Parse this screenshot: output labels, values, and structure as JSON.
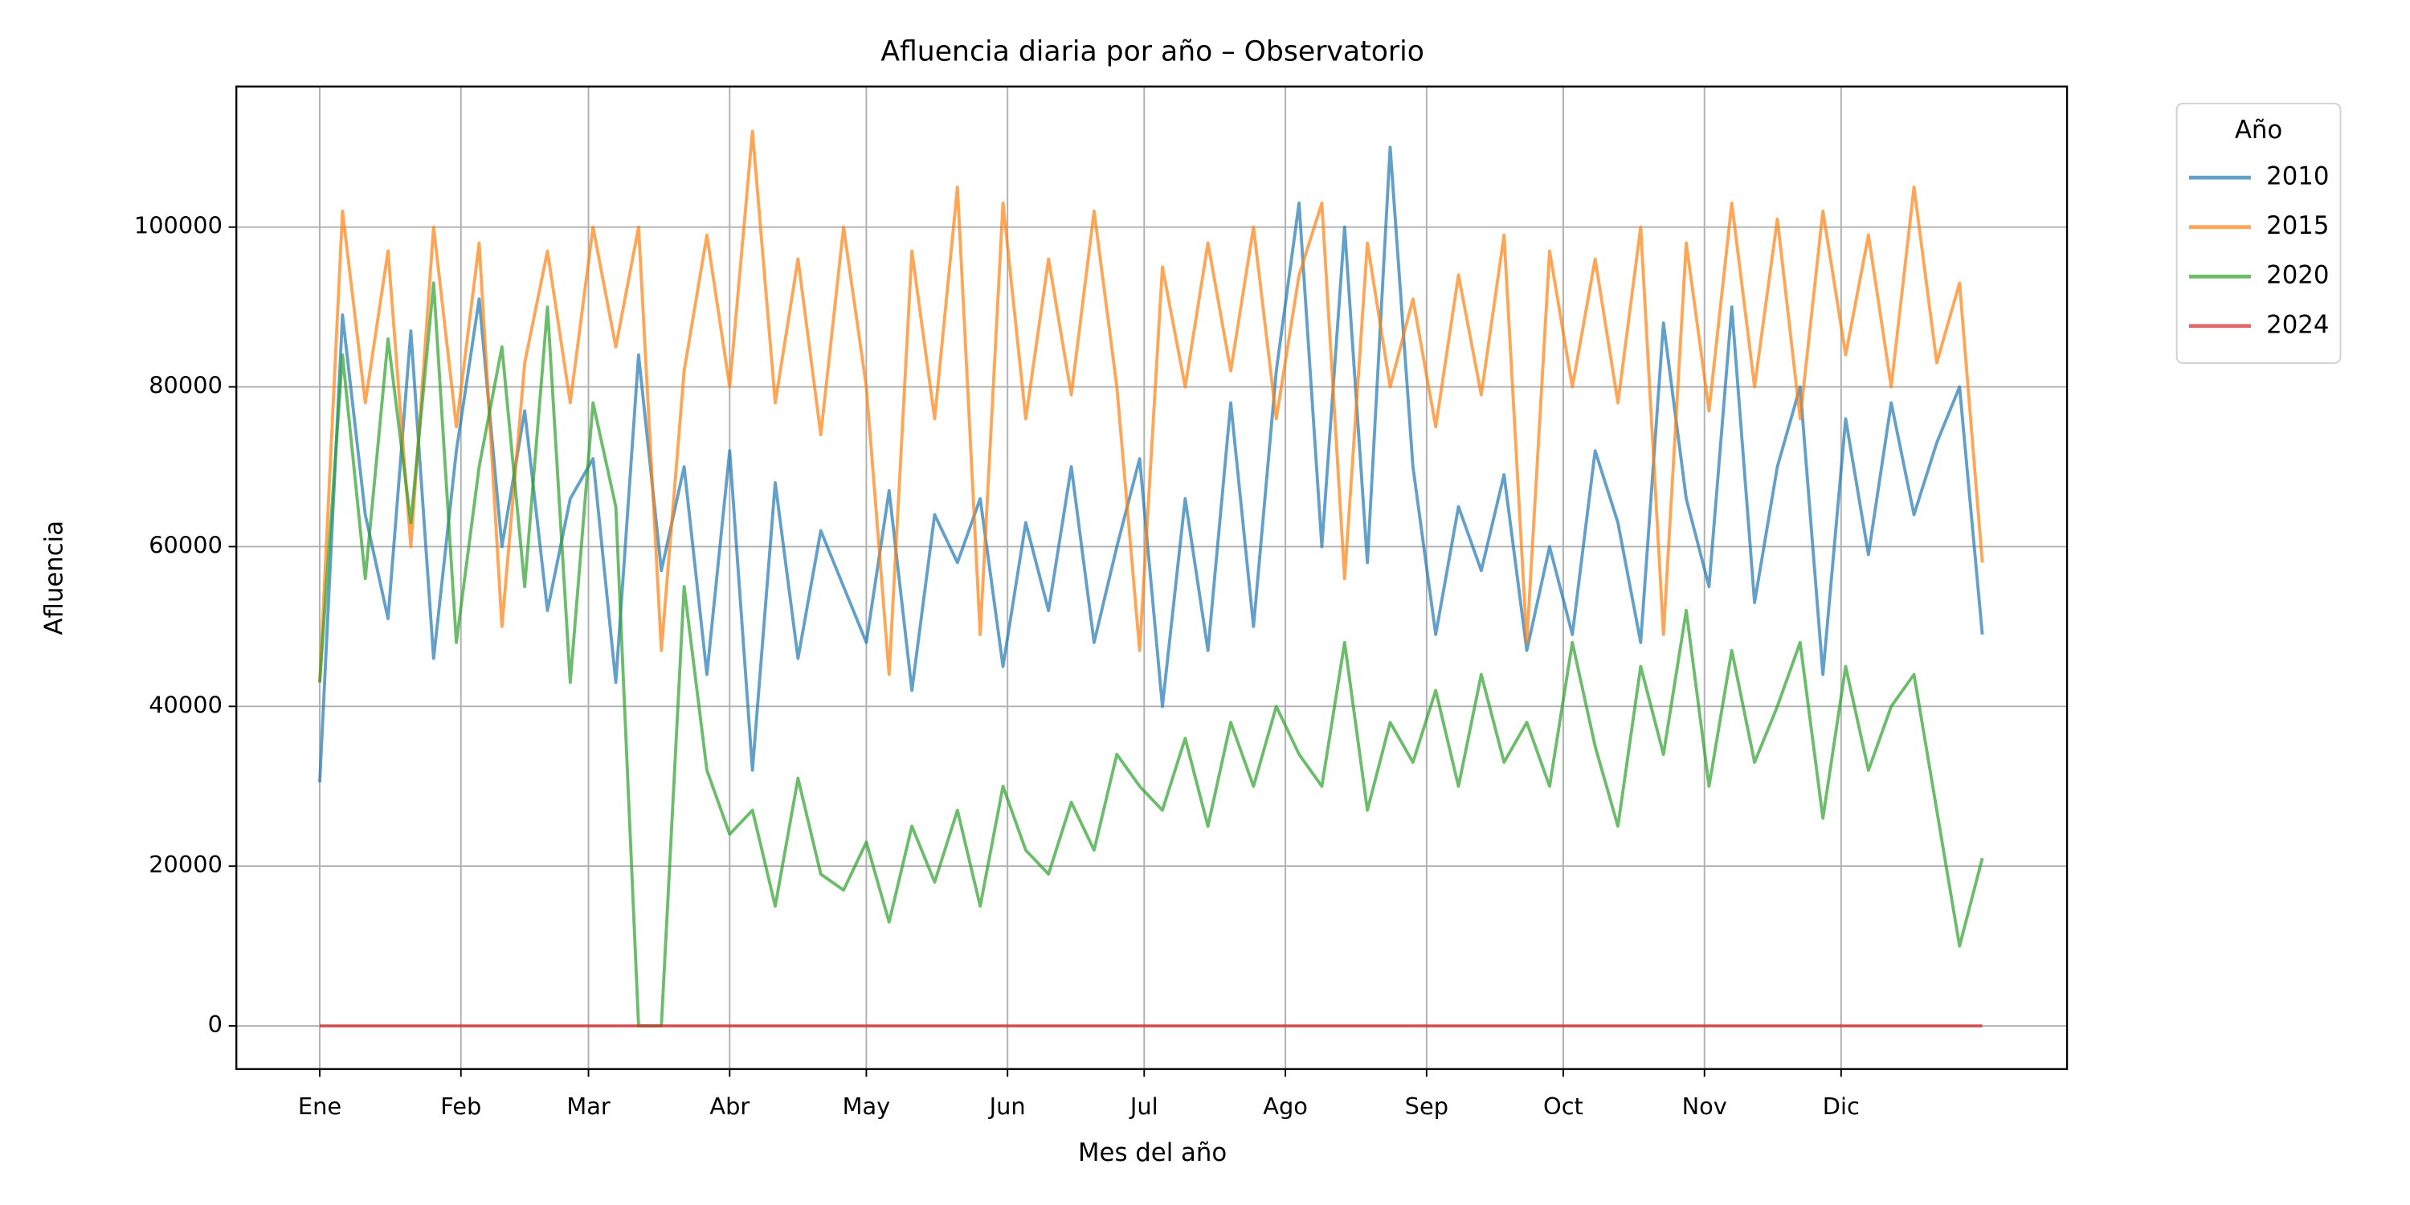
{
  "chart_data": {
    "type": "line",
    "title": "Afluencia diaria por año – Observatorio",
    "xlabel": "Mes del año",
    "ylabel": "Afluencia",
    "legend_title": "Año",
    "legend": "outside upper right",
    "grid": true,
    "x": [
      1,
      6,
      11,
      16,
      21,
      26,
      31,
      36,
      41,
      46,
      51,
      56,
      61,
      66,
      71,
      76,
      81,
      86,
      91,
      96,
      101,
      106,
      111,
      116,
      121,
      126,
      131,
      136,
      141,
      146,
      151,
      156,
      161,
      166,
      171,
      176,
      181,
      186,
      191,
      196,
      201,
      206,
      211,
      216,
      221,
      226,
      231,
      236,
      241,
      246,
      251,
      256,
      261,
      266,
      271,
      276,
      281,
      286,
      291,
      296,
      301,
      306,
      311,
      316,
      321,
      326,
      331,
      336,
      341,
      346,
      351,
      356,
      361,
      366
    ],
    "xlim": [
      -17.3,
      384.6
    ],
    "xticks": [
      {
        "value": 1,
        "label": "Ene"
      },
      {
        "value": 32,
        "label": "Feb"
      },
      {
        "value": 60,
        "label": "Mar"
      },
      {
        "value": 91,
        "label": "Abr"
      },
      {
        "value": 121,
        "label": "May"
      },
      {
        "value": 152,
        "label": "Jun"
      },
      {
        "value": 182,
        "label": "Jul"
      },
      {
        "value": 213,
        "label": "Ago"
      },
      {
        "value": 244,
        "label": "Sep"
      },
      {
        "value": 274,
        "label": "Oct"
      },
      {
        "value": 305,
        "label": "Nov"
      },
      {
        "value": 335,
        "label": "Dic"
      }
    ],
    "ylim": [
      -5400,
      117600
    ],
    "yticks": [
      0,
      20000,
      40000,
      60000,
      80000,
      100000
    ],
    "series": [
      {
        "name": "2010",
        "color": "#1f77b4",
        "values": [
          30500,
          89000,
          64000,
          51000,
          87000,
          46000,
          72000,
          91000,
          60000,
          77000,
          52000,
          66000,
          71000,
          43000,
          84000,
          57000,
          70000,
          44000,
          72000,
          32000,
          68000,
          46000,
          62000,
          55000,
          48000,
          67000,
          42000,
          64000,
          58000,
          66000,
          45000,
          63000,
          52000,
          70000,
          48000,
          60000,
          71000,
          40000,
          66000,
          47000,
          78000,
          50000,
          82000,
          103000,
          60000,
          100000,
          58000,
          110000,
          70000,
          49000,
          65000,
          57000,
          69000,
          47000,
          60000,
          49000,
          72000,
          63000,
          48000,
          88000,
          66000,
          55000,
          90000,
          53000,
          70000,
          80000,
          44000,
          76000,
          59000,
          78000,
          64000,
          73000,
          80000,
          49000
        ]
      },
      {
        "name": "2015",
        "color": "#ff7f0e",
        "values": [
          43000,
          102000,
          78000,
          97000,
          60000,
          100000,
          75000,
          98000,
          50000,
          83000,
          97000,
          78000,
          100000,
          85000,
          100000,
          47000,
          82000,
          99000,
          80000,
          112000,
          78000,
          96000,
          74000,
          100000,
          80000,
          44000,
          97000,
          76000,
          105000,
          49000,
          103000,
          76000,
          96000,
          79000,
          102000,
          80000,
          47000,
          95000,
          80000,
          98000,
          82000,
          100000,
          76000,
          94000,
          103000,
          56000,
          98000,
          80000,
          91000,
          75000,
          94000,
          79000,
          99000,
          48000,
          97000,
          80000,
          96000,
          78000,
          100000,
          49000,
          98000,
          77000,
          103000,
          80000,
          101000,
          76000,
          102000,
          84000,
          99000,
          80000,
          105000,
          83000,
          93000,
          58000
        ]
      },
      {
        "name": "2020",
        "color": "#2ca02c",
        "values": [
          43000,
          84000,
          56000,
          86000,
          63000,
          93000,
          48000,
          70000,
          85000,
          55000,
          90000,
          43000,
          78000,
          65000,
          0,
          0,
          55000,
          32000,
          24000,
          27000,
          15000,
          31000,
          19000,
          17000,
          23000,
          13000,
          25000,
          18000,
          27000,
          15000,
          30000,
          22000,
          19000,
          28000,
          22000,
          34000,
          30000,
          27000,
          36000,
          25000,
          38000,
          30000,
          40000,
          34000,
          30000,
          48000,
          27000,
          38000,
          33000,
          42000,
          30000,
          44000,
          33000,
          38000,
          30000,
          48000,
          35000,
          25000,
          45000,
          34000,
          52000,
          30000,
          47000,
          33000,
          40000,
          48000,
          26000,
          45000,
          32000,
          40000,
          44000,
          27000,
          10000,
          21000
        ]
      },
      {
        "name": "2024",
        "color": "#d62728",
        "values": [
          0,
          0,
          0,
          0,
          0,
          0,
          0,
          0,
          0,
          0,
          0,
          0,
          0,
          0,
          0,
          0,
          0,
          0,
          0,
          0,
          0,
          0,
          0,
          0,
          0,
          0,
          0,
          0,
          0,
          0,
          0,
          0,
          0,
          0,
          0,
          0,
          0,
          0,
          0,
          0,
          0,
          0,
          0,
          0,
          0,
          0,
          0,
          0,
          0,
          0,
          0,
          0,
          0,
          0,
          0,
          0,
          0,
          0,
          0,
          0,
          0,
          0,
          0,
          0,
          0,
          0,
          0,
          0,
          0,
          0,
          0,
          0,
          0,
          0
        ]
      }
    ]
  }
}
